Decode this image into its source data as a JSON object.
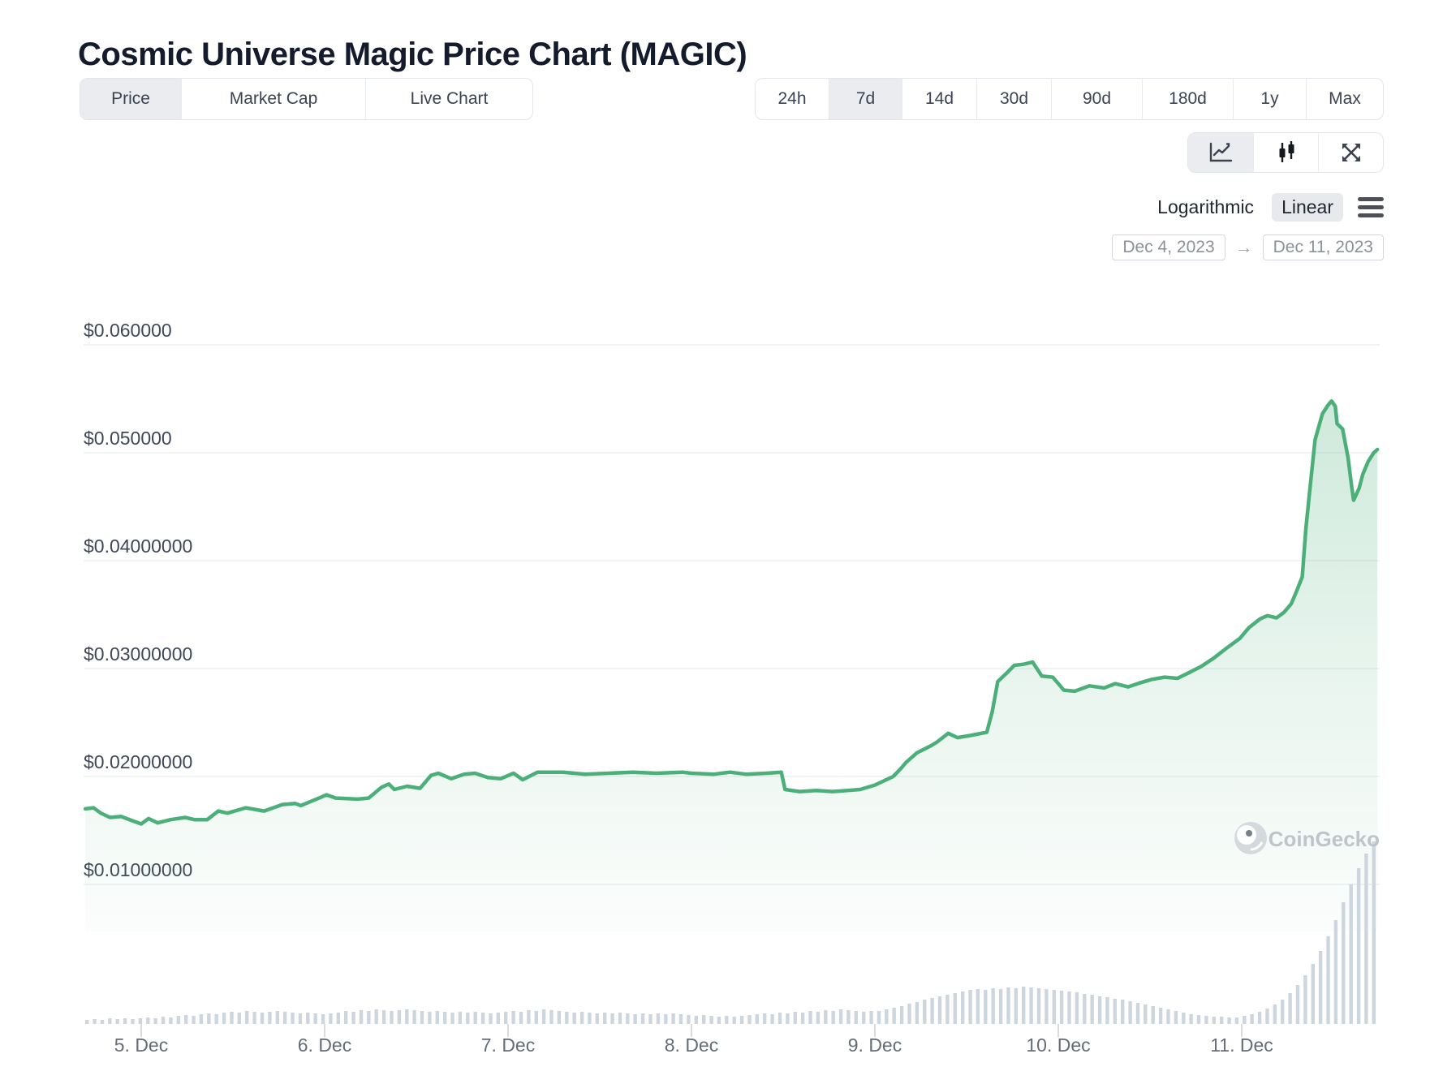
{
  "page": {
    "title": "Cosmic Universe Magic Price Chart (MAGIC)"
  },
  "tabs": [
    {
      "label": "Price",
      "selected": true
    },
    {
      "label": "Market Cap",
      "selected": false
    },
    {
      "label": "Live Chart",
      "selected": false
    }
  ],
  "ranges": [
    {
      "label": "24h",
      "selected": false
    },
    {
      "label": "7d",
      "selected": true
    },
    {
      "label": "14d",
      "selected": false
    },
    {
      "label": "30d",
      "selected": false
    },
    {
      "label": "90d",
      "selected": false
    },
    {
      "label": "180d",
      "selected": false
    },
    {
      "label": "1y",
      "selected": false
    },
    {
      "label": "Max",
      "selected": false
    }
  ],
  "chart_type_icons": [
    {
      "name": "line-chart-icon",
      "selected": true
    },
    {
      "name": "candlestick-icon",
      "selected": false
    },
    {
      "name": "fullscreen-icon",
      "selected": false
    }
  ],
  "scale_toggle": {
    "options": [
      {
        "label": "Logarithmic",
        "selected": false
      },
      {
        "label": "Linear",
        "selected": true
      }
    ]
  },
  "date_range": {
    "from": "Dec 4, 2023",
    "arrow": "→",
    "to": "Dec 11, 2023"
  },
  "watermark": {
    "label": "CoinGecko"
  },
  "chart_data": {
    "type": "line",
    "title": "Cosmic Universe Magic Price Chart (MAGIC)",
    "series_name": "MAGIC price (USD)",
    "x_axis_note": "day 1.0 = Dec 5 2023 00:00, range Dec 4 ~16:40 to Dec 11 ~17:45",
    "x_ticks": [
      "5. Dec",
      "6. Dec",
      "7. Dec",
      "8. Dec",
      "9. Dec",
      "10. Dec",
      "11. Dec"
    ],
    "y_ticks": [
      {
        "label": "$0.060000",
        "value": 0.06
      },
      {
        "label": "$0.050000",
        "value": 0.05
      },
      {
        "label": "$0.04000000",
        "value": 0.04
      },
      {
        "label": "$0.03000000",
        "value": 0.03
      },
      {
        "label": "$0.02000000",
        "value": 0.02
      },
      {
        "label": "$0.01000000",
        "value": 0.01
      }
    ],
    "ylim": [
      0.0095,
      0.065
    ],
    "grid": true,
    "colors": {
      "line": "#4caf7a",
      "fill": "#4caf7a",
      "volume": "#cdd6df",
      "grid": "#f1f3f5"
    },
    "points": [
      [
        0.695,
        0.017
      ],
      [
        0.74,
        0.0171
      ],
      [
        0.78,
        0.0166
      ],
      [
        0.83,
        0.0162
      ],
      [
        0.89,
        0.0163
      ],
      [
        0.92,
        0.0161
      ],
      [
        1.0,
        0.0156
      ],
      [
        1.04,
        0.0161
      ],
      [
        1.09,
        0.0157
      ],
      [
        1.16,
        0.016
      ],
      [
        1.24,
        0.0162
      ],
      [
        1.29,
        0.016
      ],
      [
        1.36,
        0.016
      ],
      [
        1.42,
        0.0168
      ],
      [
        1.47,
        0.0166
      ],
      [
        1.57,
        0.0171
      ],
      [
        1.67,
        0.0168
      ],
      [
        1.77,
        0.0174
      ],
      [
        1.84,
        0.0175
      ],
      [
        1.87,
        0.0173
      ],
      [
        1.97,
        0.018
      ],
      [
        2.01,
        0.0183
      ],
      [
        2.06,
        0.018
      ],
      [
        2.18,
        0.0179
      ],
      [
        2.24,
        0.018
      ],
      [
        2.31,
        0.019
      ],
      [
        2.35,
        0.0193
      ],
      [
        2.38,
        0.0188
      ],
      [
        2.45,
        0.0191
      ],
      [
        2.52,
        0.0189
      ],
      [
        2.58,
        0.0201
      ],
      [
        2.62,
        0.0203
      ],
      [
        2.69,
        0.0198
      ],
      [
        2.76,
        0.0202
      ],
      [
        2.82,
        0.0203
      ],
      [
        2.89,
        0.0199
      ],
      [
        2.96,
        0.0198
      ],
      [
        3.03,
        0.0203
      ],
      [
        3.08,
        0.0197
      ],
      [
        3.16,
        0.0204
      ],
      [
        3.3,
        0.0204
      ],
      [
        3.42,
        0.0202
      ],
      [
        3.55,
        0.0203
      ],
      [
        3.68,
        0.0204
      ],
      [
        3.81,
        0.0203
      ],
      [
        3.95,
        0.0204
      ],
      [
        4.0,
        0.0203
      ],
      [
        4.12,
        0.0202
      ],
      [
        4.21,
        0.0204
      ],
      [
        4.3,
        0.0202
      ],
      [
        4.41,
        0.0203
      ],
      [
        4.49,
        0.0204
      ],
      [
        4.51,
        0.0188
      ],
      [
        4.59,
        0.0186
      ],
      [
        4.68,
        0.0187
      ],
      [
        4.77,
        0.0186
      ],
      [
        4.85,
        0.0187
      ],
      [
        4.92,
        0.0188
      ],
      [
        5.0,
        0.0192
      ],
      [
        5.05,
        0.0196
      ],
      [
        5.1,
        0.02
      ],
      [
        5.14,
        0.0207
      ],
      [
        5.17,
        0.0213
      ],
      [
        5.23,
        0.0222
      ],
      [
        5.3,
        0.0228
      ],
      [
        5.34,
        0.0232
      ],
      [
        5.4,
        0.024
      ],
      [
        5.45,
        0.0236
      ],
      [
        5.52,
        0.0238
      ],
      [
        5.61,
        0.0241
      ],
      [
        5.64,
        0.026
      ],
      [
        5.67,
        0.0288
      ],
      [
        5.72,
        0.0296
      ],
      [
        5.76,
        0.0303
      ],
      [
        5.81,
        0.0304
      ],
      [
        5.86,
        0.0306
      ],
      [
        5.91,
        0.0293
      ],
      [
        5.97,
        0.0292
      ],
      [
        6.03,
        0.028
      ],
      [
        6.09,
        0.0279
      ],
      [
        6.17,
        0.0284
      ],
      [
        6.25,
        0.0282
      ],
      [
        6.31,
        0.0286
      ],
      [
        6.38,
        0.0283
      ],
      [
        6.45,
        0.0287
      ],
      [
        6.51,
        0.029
      ],
      [
        6.58,
        0.0292
      ],
      [
        6.65,
        0.0291
      ],
      [
        6.71,
        0.0296
      ],
      [
        6.78,
        0.0302
      ],
      [
        6.85,
        0.031
      ],
      [
        6.91,
        0.0318
      ],
      [
        6.99,
        0.0328
      ],
      [
        7.04,
        0.0338
      ],
      [
        7.1,
        0.0346
      ],
      [
        7.14,
        0.0349
      ],
      [
        7.19,
        0.0347
      ],
      [
        7.23,
        0.0352
      ],
      [
        7.27,
        0.036
      ],
      [
        7.3,
        0.0372
      ],
      [
        7.33,
        0.0385
      ],
      [
        7.35,
        0.043
      ],
      [
        7.38,
        0.048
      ],
      [
        7.4,
        0.0512
      ],
      [
        7.42,
        0.0524
      ],
      [
        7.44,
        0.0536
      ],
      [
        7.47,
        0.0544
      ],
      [
        7.49,
        0.0548
      ],
      [
        7.51,
        0.0543
      ],
      [
        7.52,
        0.0527
      ],
      [
        7.55,
        0.0522
      ],
      [
        7.58,
        0.0495
      ],
      [
        7.6,
        0.0468
      ],
      [
        7.61,
        0.0456
      ],
      [
        7.64,
        0.0467
      ],
      [
        7.66,
        0.048
      ],
      [
        7.69,
        0.0492
      ],
      [
        7.72,
        0.05
      ],
      [
        7.74,
        0.0503
      ]
    ],
    "volume_bars": [
      5,
      6,
      5,
      7,
      6,
      7,
      6,
      7,
      8,
      7,
      9,
      8,
      10,
      11,
      10,
      12,
      13,
      12,
      14,
      15,
      14,
      16,
      15,
      14,
      15,
      16,
      15,
      14,
      13,
      14,
      13,
      12,
      13,
      14,
      16,
      15,
      17,
      16,
      18,
      17,
      16,
      17,
      18,
      17,
      16,
      15,
      16,
      15,
      14,
      15,
      14,
      15,
      14,
      13,
      14,
      15,
      16,
      15,
      17,
      16,
      18,
      17,
      16,
      15,
      14,
      15,
      14,
      13,
      14,
      13,
      14,
      13,
      12,
      13,
      12,
      13,
      12,
      13,
      12,
      11,
      10,
      11,
      10,
      9,
      10,
      9,
      10,
      11,
      12,
      13,
      12,
      14,
      13,
      15,
      14,
      16,
      15,
      17,
      16,
      18,
      17,
      16,
      15,
      16,
      16,
      18,
      20,
      22,
      25,
      27,
      30,
      32,
      34,
      36,
      38,
      40,
      42,
      43,
      42,
      44,
      43,
      45,
      44,
      46,
      45,
      44,
      43,
      42,
      41,
      40,
      39,
      37,
      36,
      34,
      33,
      31,
      30,
      28,
      26,
      24,
      22,
      20,
      18,
      16,
      14,
      12,
      11,
      10,
      9,
      9,
      8,
      8,
      10,
      12,
      15,
      19,
      24,
      30,
      38,
      48,
      60,
      74,
      90,
      108,
      128,
      150,
      172,
      192,
      210,
      225
    ]
  }
}
